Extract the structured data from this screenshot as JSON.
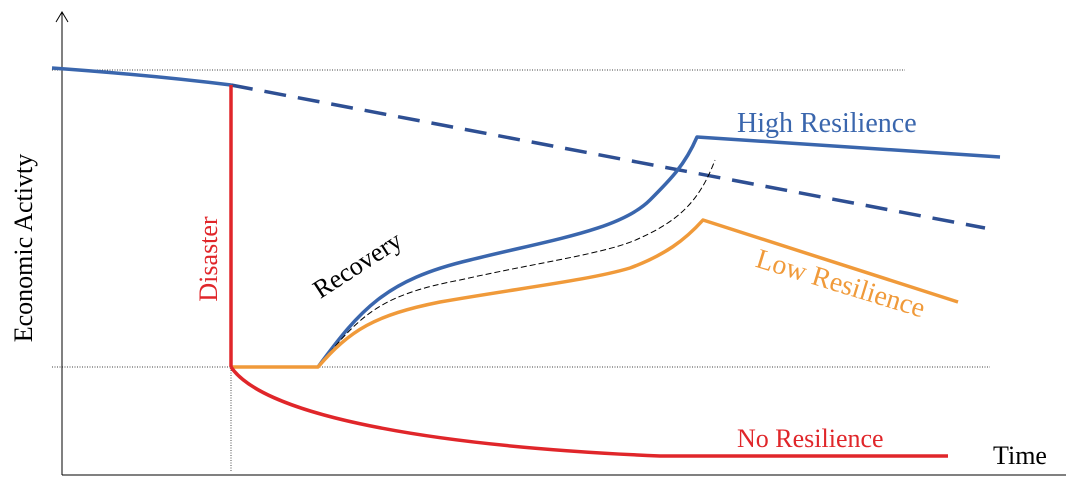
{
  "labels": {
    "y_axis": "Economic Activty",
    "x_axis": "Time",
    "disaster": "Disaster",
    "recovery": "Recovery",
    "high_resilience": "High Resilience",
    "low_resilience": "Low Resilience",
    "no_resilience": "No Resilience"
  },
  "colors": {
    "high_resilience": "#3a66ad",
    "baseline_trend": "#2e4f93",
    "low_resilience": "#f09a3a",
    "no_resilience": "#e0262a",
    "disaster": "#e0262a",
    "recovery": "#000000"
  }
}
